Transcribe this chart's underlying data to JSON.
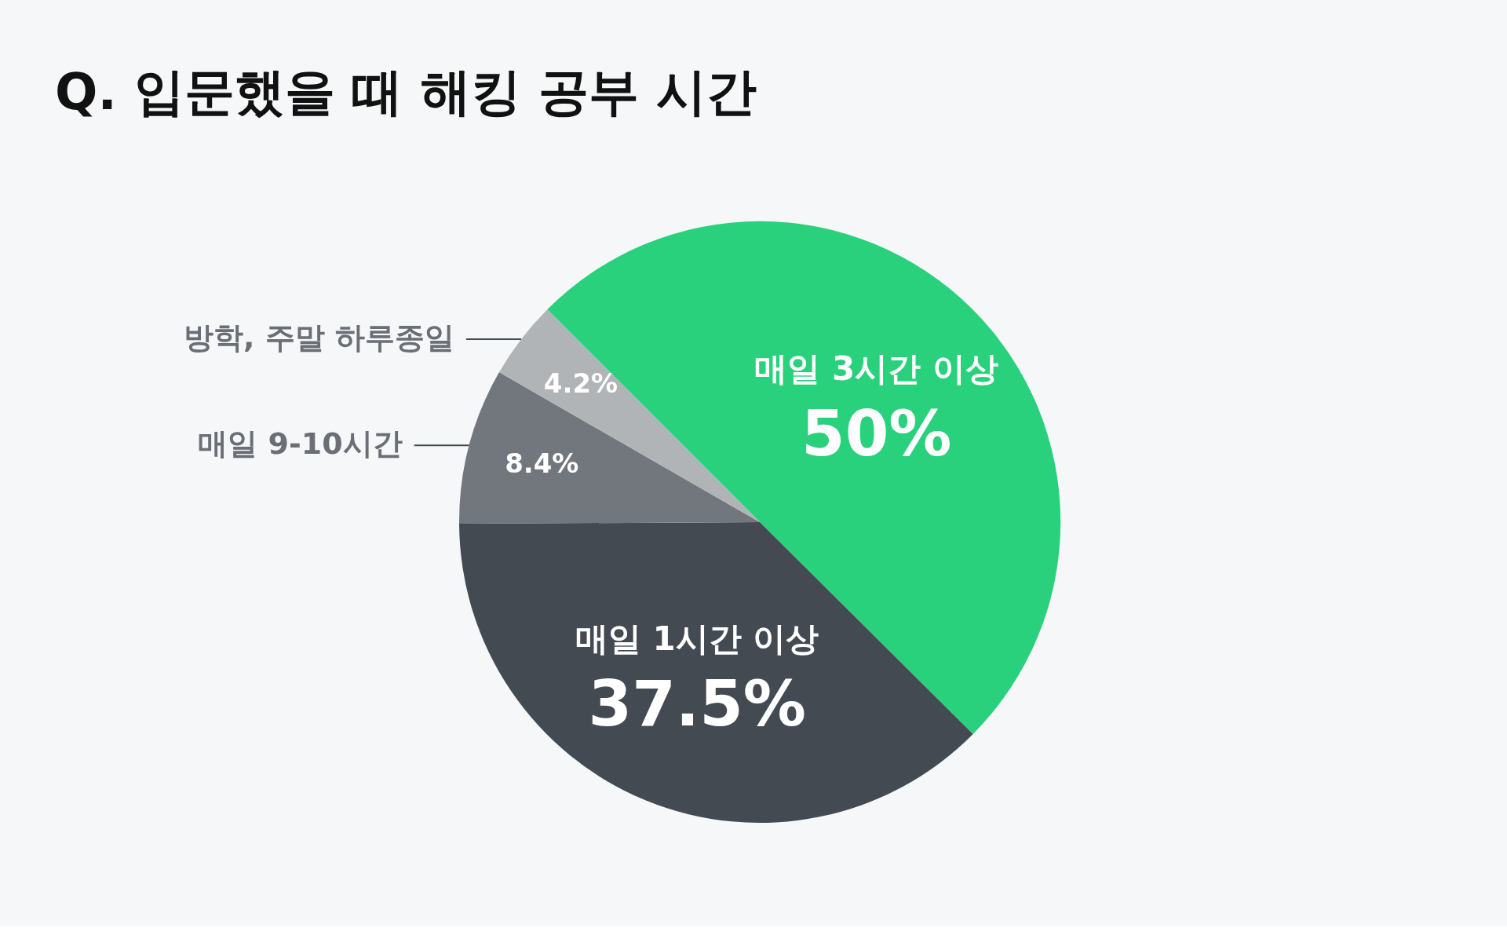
{
  "chart_data": {
    "type": "pie",
    "title": "Q. 입문했을 때 해킹 공부 시간",
    "categories": [
      "매일 3시간 이상",
      "매일 1시간 이상",
      "매일 9-10시간",
      "방학, 주말 하루종일"
    ],
    "values": [
      50,
      37.5,
      8.4,
      4.2
    ],
    "colors": [
      "#2ad17c",
      "#434a52",
      "#72777e",
      "#b1b4b6"
    ],
    "value_labels": [
      "50%",
      "37.5%",
      "8.4%",
      "4.2%"
    ]
  }
}
